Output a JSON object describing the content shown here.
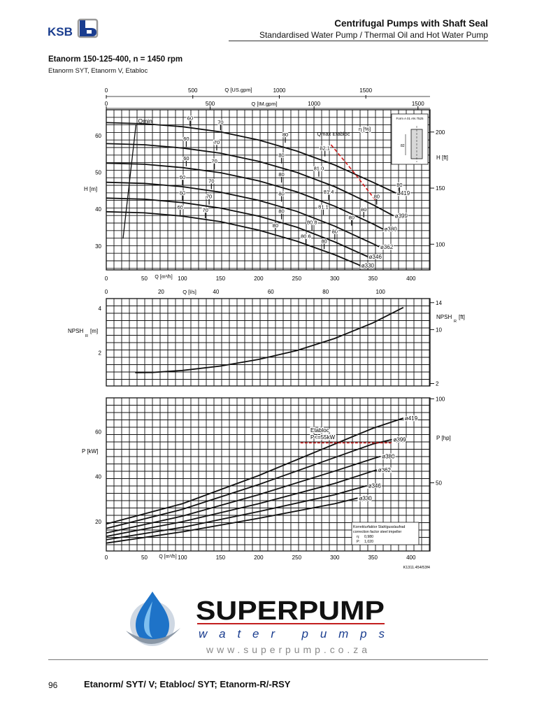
{
  "header": {
    "title": "Centrifugal Pumps with Shaft Seal",
    "subtitle": "Standardised Water Pump / Thermal Oil and Hot Water Pump",
    "logo_text": "KSB"
  },
  "pump": {
    "title": "Etanorm 150-125-400, n = 1450 rpm",
    "variants": "Etanorm SYT, Etanorm V, Etabloc"
  },
  "chart_data": [
    {
      "type": "line",
      "name": "head",
      "x_axis": {
        "label": "Q [m³/h]",
        "range": [
          0,
          425
        ],
        "ticks": [
          0,
          50,
          100,
          150,
          200,
          250,
          300,
          350,
          400
        ]
      },
      "top_axis_us": {
        "label": "Q [US.gpm]",
        "ticks": [
          0,
          500,
          1000,
          1500
        ],
        "range": [
          0,
          1871
        ]
      },
      "top_axis_im": {
        "label": "Q [IM.gpm]",
        "ticks": [
          0,
          500,
          1000,
          1500
        ],
        "range": [
          0,
          1558
        ]
      },
      "y_axis": {
        "label": "H [m]",
        "range": [
          23.5,
          67
        ],
        "ticks": [
          30,
          40,
          50,
          60
        ]
      },
      "y2_axis": {
        "label": "H [ft]",
        "ticks": [
          100,
          150,
          200
        ],
        "factor": 3.281
      },
      "series": [
        {
          "name": "ø419",
          "x": [
            0,
            50,
            100,
            150,
            200,
            250,
            300,
            350,
            380
          ],
          "y": [
            63.5,
            63.2,
            62.4,
            61.0,
            58.8,
            55.8,
            52.0,
            47.3,
            44.4
          ]
        },
        {
          "name": "ø399",
          "x": [
            0,
            50,
            100,
            150,
            200,
            250,
            300,
            350,
            377
          ],
          "y": [
            57.8,
            57.5,
            56.6,
            55.2,
            53.0,
            50.0,
            46.1,
            41.2,
            38.2
          ]
        },
        {
          "name": "ø380",
          "x": [
            0,
            50,
            100,
            150,
            200,
            250,
            300,
            350,
            363
          ],
          "y": [
            52.5,
            52.2,
            51.3,
            49.9,
            47.7,
            44.7,
            40.8,
            36.0,
            34.6
          ]
        },
        {
          "name": "ø362",
          "x": [
            0,
            50,
            100,
            150,
            200,
            250,
            300,
            350,
            358
          ],
          "y": [
            47.3,
            47.0,
            46.1,
            44.6,
            42.4,
            39.4,
            35.4,
            30.6,
            29.8
          ]
        },
        {
          "name": "ø346",
          "x": [
            0,
            50,
            100,
            150,
            200,
            250,
            300,
            340,
            343
          ],
          "y": [
            43.0,
            42.7,
            41.8,
            40.3,
            38.1,
            35.1,
            31.1,
            27.4,
            27.1
          ]
        },
        {
          "name": "ø330",
          "x": [
            0,
            50,
            100,
            150,
            200,
            250,
            300,
            330,
            333
          ],
          "y": [
            39.3,
            39.0,
            38.1,
            36.6,
            34.3,
            31.3,
            27.6,
            25.0,
            24.7
          ]
        }
      ],
      "qmin": {
        "label": "Qmin",
        "x": [
          22,
          39
        ],
        "y": [
          32,
          63
        ]
      },
      "qmax": {
        "label": "Qmax Etabloc",
        "x": [
          295,
          325,
          355
        ],
        "y": [
          57.5,
          50.0,
          42.0
        ]
      },
      "efficiency_label": "η [%]",
      "efficiency_marks": [
        {
          "text": "60",
          "x": 110,
          "y": 63.3
        },
        {
          "text": "70",
          "x": 150,
          "y": 62.2
        },
        {
          "text": "80",
          "x": 235,
          "y": 58.8
        },
        {
          "text": "82.1",
          "x": 287,
          "y": 55.1
        },
        {
          "text": "80",
          "x": 385,
          "y": 45.2
        },
        {
          "text": "60",
          "x": 105,
          "y": 57.7
        },
        {
          "text": "70",
          "x": 145,
          "y": 56.7
        },
        {
          "text": "80",
          "x": 230,
          "y": 53.2
        },
        {
          "text": "81.0",
          "x": 279,
          "y": 49.6
        },
        {
          "text": "80",
          "x": 355,
          "y": 42.0
        },
        {
          "text": "60",
          "x": 105,
          "y": 52.4
        },
        {
          "text": "70",
          "x": 142,
          "y": 51.6
        },
        {
          "text": "80",
          "x": 230,
          "y": 48.0
        },
        {
          "text": "81.4",
          "x": 292,
          "y": 43.3
        },
        {
          "text": "80",
          "x": 338,
          "y": 38.5
        },
        {
          "text": "60",
          "x": 100,
          "y": 47.2
        },
        {
          "text": "70",
          "x": 138,
          "y": 46.2
        },
        {
          "text": "80",
          "x": 230,
          "y": 42.8
        },
        {
          "text": "81.1",
          "x": 285,
          "y": 39.2
        },
        {
          "text": "80",
          "x": 322,
          "y": 36.3
        },
        {
          "text": "60",
          "x": 100,
          "y": 43.0
        },
        {
          "text": "70",
          "x": 135,
          "y": 42.0
        },
        {
          "text": "80",
          "x": 230,
          "y": 38.0
        },
        {
          "text": "80.8",
          "x": 270,
          "y": 35.0
        },
        {
          "text": "80",
          "x": 300,
          "y": 32.5
        },
        {
          "text": "60",
          "x": 97,
          "y": 39.1
        },
        {
          "text": "70",
          "x": 130,
          "y": 38.3
        },
        {
          "text": "80",
          "x": 222,
          "y": 34.1
        },
        {
          "text": "80.6",
          "x": 262,
          "y": 31.2
        },
        {
          "text": "80",
          "x": 286,
          "y": 29.9
        }
      ],
      "inset_note": "Form A 01 AN 7525",
      "inset_dim": "82"
    },
    {
      "type": "line",
      "name": "npsh",
      "x_axis": {
        "label": "Q [l/s]",
        "range": [
          0,
          425
        ],
        "ticks": [
          0,
          20,
          40,
          60,
          80,
          100
        ],
        "factor": 3.6
      },
      "y_axis": {
        "label": "NPSH",
        "subscript": "R",
        "unit": "[m]",
        "range": [
          0.5,
          4.45
        ],
        "ticks": [
          2,
          4
        ]
      },
      "y2_axis": {
        "label": "NPSH",
        "subscript": "R",
        "unit": "[ft]",
        "ticks": [
          2,
          10,
          14
        ],
        "factor": 3.281
      },
      "series": [
        {
          "name": "",
          "x": [
            38,
            60,
            100,
            150,
            200,
            250,
            300,
            350,
            390
          ],
          "y": [
            1.1,
            1.11,
            1.2,
            1.4,
            1.7,
            2.1,
            2.65,
            3.35,
            4.05
          ]
        }
      ]
    },
    {
      "type": "line",
      "name": "power",
      "x_axis": {
        "label": "Q [m³/h]",
        "range": [
          0,
          425
        ],
        "ticks": [
          0,
          50,
          100,
          150,
          200,
          250,
          300,
          350,
          400
        ]
      },
      "y_axis": {
        "label": "P [kW]",
        "range": [
          7,
          75
        ],
        "ticks": [
          20,
          40,
          60
        ]
      },
      "y2_axis": {
        "label": "P [hp]",
        "ticks": [
          50,
          100
        ],
        "factor": 1.341
      },
      "series": [
        {
          "name": "ø419",
          "x": [
            0,
            100,
            200,
            300,
            350,
            390
          ],
          "y": [
            19.0,
            28.0,
            40.5,
            54.5,
            61.5,
            66.0
          ]
        },
        {
          "name": "ø399",
          "x": [
            0,
            100,
            200,
            300,
            350,
            375
          ],
          "y": [
            17.0,
            25.5,
            36.5,
            48.5,
            54.5,
            56.5
          ]
        },
        {
          "name": "ø380",
          "x": [
            0,
            100,
            200,
            300,
            350,
            360
          ],
          "y": [
            15.0,
            22.5,
            32.0,
            42.5,
            48.0,
            49.0
          ]
        },
        {
          "name": "ø362",
          "x": [
            0,
            100,
            200,
            300,
            350,
            355
          ],
          "y": [
            13.5,
            20.0,
            28.0,
            37.0,
            42.5,
            43.0
          ]
        },
        {
          "name": "ø346",
          "x": [
            0,
            100,
            200,
            300,
            342
          ],
          "y": [
            12.0,
            17.5,
            24.5,
            32.0,
            36.0
          ]
        },
        {
          "name": "ø330",
          "x": [
            0,
            100,
            200,
            300,
            330
          ],
          "y": [
            10.5,
            15.5,
            21.5,
            28.0,
            30.5
          ]
        }
      ],
      "etabloc": {
        "label_1": "Etabloc",
        "label_2": "P<=55kW",
        "value": 55,
        "x": [
          255,
          375
        ]
      },
      "note": {
        "line1": "Korrekturfaktor Stahlgusslaufrad",
        "line2": "correction factor steel impeller",
        "eta_value": "0,980",
        "p_value": "1,020",
        "eta_symbol": "η:",
        "p_symbol": "P:"
      },
      "drawing_no": "K1311.454/53f4"
    }
  ],
  "brand": {
    "name": "SUPERPUMP",
    "tagline": "water pumps",
    "url": "www.superpump.co.za"
  },
  "footer": {
    "page_number": "96",
    "title": "Etanorm/ SYT/ V; Etabloc/ SYT; Etanorm-R/-RSY"
  }
}
